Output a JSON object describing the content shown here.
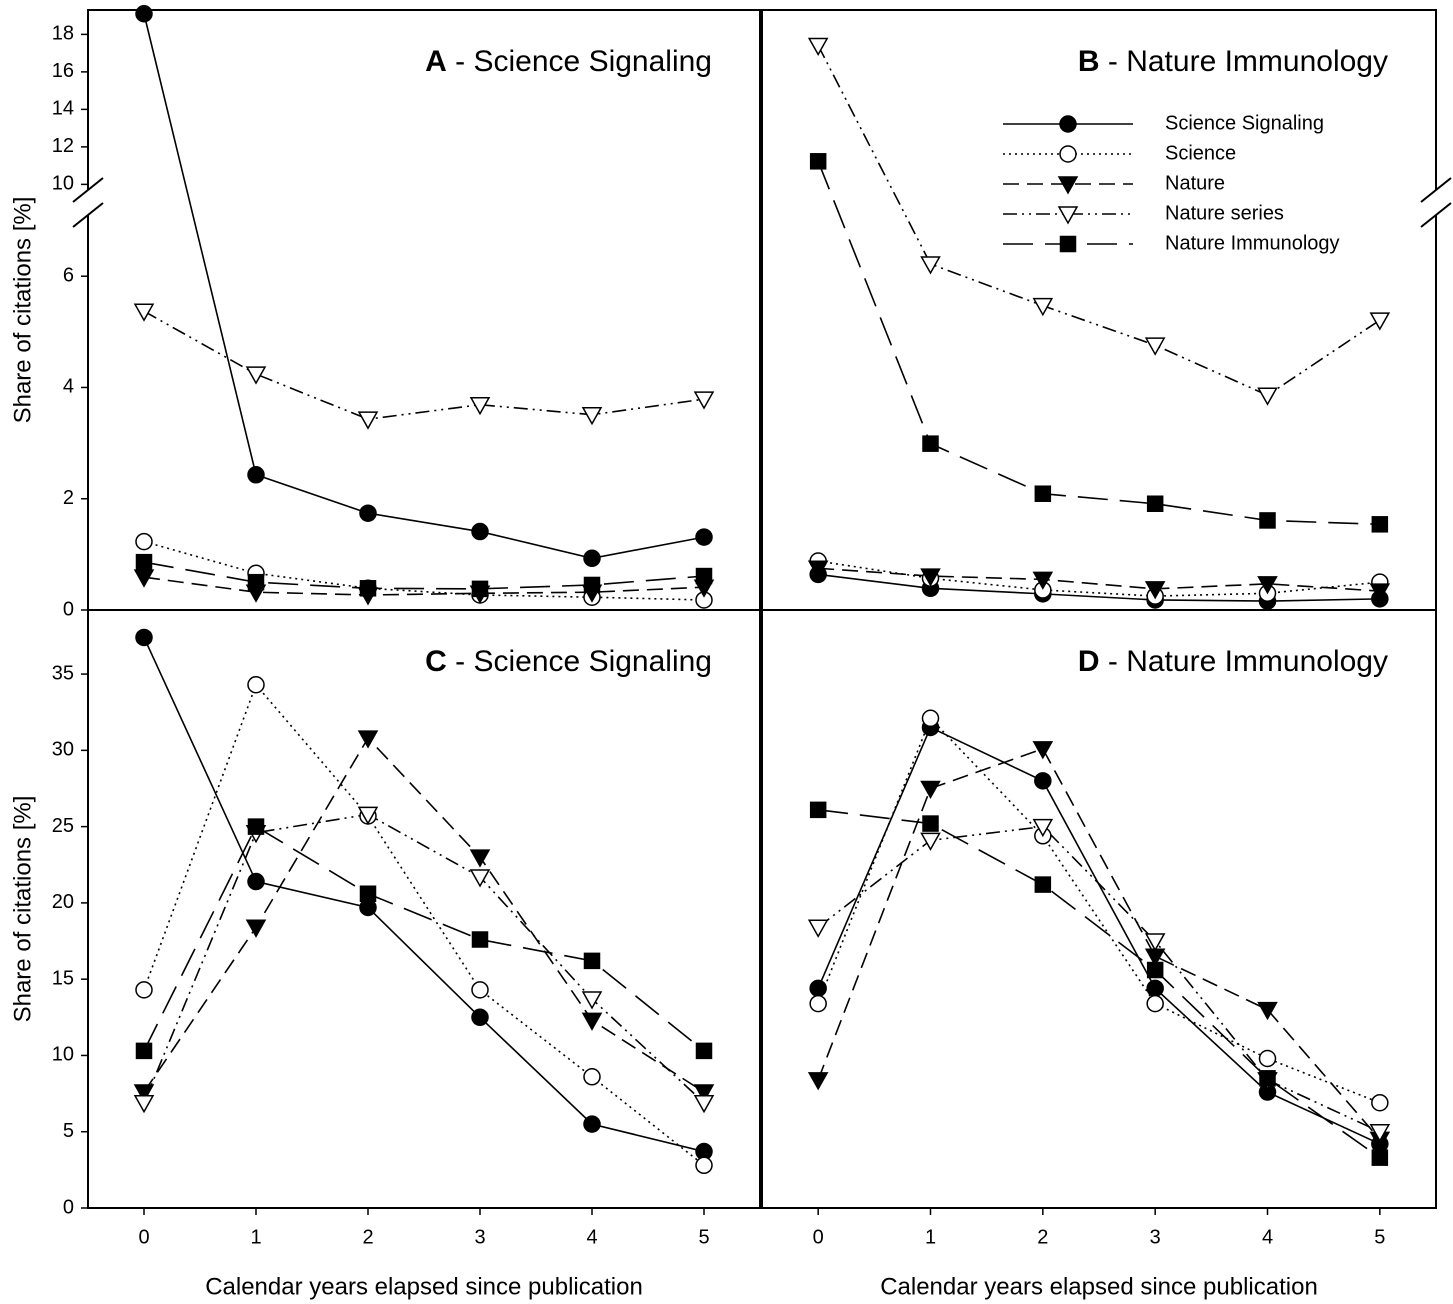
{
  "chart_data": [
    {
      "type": "line",
      "title": "A - Science Signaling",
      "y_label": "Share of citations [%]",
      "x": [
        0,
        1,
        2,
        3,
        4,
        5
      ],
      "xlim": [
        -0.5,
        5.5
      ],
      "ylim": [
        0,
        19.3
      ],
      "ybreak": [
        7.1,
        9.7
      ],
      "yticks": [
        0,
        2,
        4,
        6,
        10,
        12,
        14,
        16,
        18
      ],
      "series": [
        {
          "color": "#000000",
          "marker": "filled-circle",
          "dash": "solid",
          "values": [
            19.1,
            2.43,
            1.74,
            1.41,
            0.93,
            1.31
          ]
        },
        {
          "color": "#000000",
          "marker": "open-circle",
          "dash": "dotted",
          "values": [
            1.23,
            0.66,
            0.39,
            0.27,
            0.23,
            0.18
          ]
        },
        {
          "color": "#000000",
          "marker": "filled-triangle-down",
          "dash": "dashed",
          "values": [
            0.59,
            0.32,
            0.27,
            0.3,
            0.32,
            0.41
          ]
        },
        {
          "color": "#000000",
          "marker": "open-triangle-down",
          "dash": "dash-dot-dot",
          "values": [
            5.37,
            4.24,
            3.43,
            3.69,
            3.51,
            3.79
          ]
        },
        {
          "color": "#000000",
          "marker": "filled-square",
          "dash": "long-dash",
          "values": [
            0.86,
            0.5,
            0.39,
            0.38,
            0.45,
            0.61
          ]
        }
      ]
    },
    {
      "type": "line",
      "title": "B - Nature Immunology",
      "legend": "upper right",
      "x": [
        0,
        1,
        2,
        3,
        4,
        5
      ],
      "xlim": [
        -0.5,
        5.5
      ],
      "ylim": [
        0,
        19.3
      ],
      "ybreak": [
        7.1,
        9.7
      ],
      "series": [
        {
          "name": "Science Signaling",
          "color": "#000000",
          "marker": "filled-circle",
          "dash": "solid",
          "values": [
            0.64,
            0.39,
            0.29,
            0.18,
            0.16,
            0.2
          ]
        },
        {
          "name": "Science",
          "color": "#000000",
          "marker": "open-circle",
          "dash": "dotted",
          "values": [
            0.88,
            0.57,
            0.36,
            0.25,
            0.3,
            0.5
          ]
        },
        {
          "name": "Nature",
          "color": "#000000",
          "marker": "filled-triangle-down",
          "dash": "dashed",
          "values": [
            0.75,
            0.61,
            0.55,
            0.38,
            0.47,
            0.34
          ]
        },
        {
          "name": "Nature series",
          "color": "#000000",
          "marker": "open-triangle-down",
          "dash": "dash-dot-dot",
          "values": [
            17.41,
            6.22,
            5.47,
            4.76,
            3.86,
            5.21
          ]
        },
        {
          "name": "Nature Immunology",
          "color": "#000000",
          "marker": "filled-square",
          "dash": "long-dash",
          "values": [
            11.23,
            2.99,
            2.09,
            1.91,
            1.61,
            1.54
          ]
        }
      ]
    },
    {
      "type": "line",
      "title": "C - Science Signaling",
      "y_label": "Share of citations [%]",
      "x_label": "Calendar years elapsed since publication",
      "x": [
        0,
        1,
        2,
        3,
        4,
        5
      ],
      "xlim": [
        -0.5,
        5.5
      ],
      "xticks": [
        0,
        1,
        2,
        3,
        4,
        5
      ],
      "ylim": [
        0,
        39.2
      ],
      "yticks": [
        0,
        5,
        10,
        15,
        20,
        25,
        30,
        35
      ],
      "series": [
        {
          "color": "#000000",
          "marker": "filled-circle",
          "dash": "solid",
          "values": [
            37.4,
            21.4,
            19.7,
            12.5,
            5.5,
            3.7
          ]
        },
        {
          "color": "#000000",
          "marker": "open-circle",
          "dash": "dotted",
          "values": [
            14.3,
            34.3,
            25.7,
            14.3,
            8.6,
            2.8
          ]
        },
        {
          "color": "#000000",
          "marker": "filled-triangle-down",
          "dash": "dashed",
          "values": [
            7.6,
            18.4,
            30.8,
            23.0,
            12.3,
            7.6
          ]
        },
        {
          "color": "#000000",
          "marker": "open-triangle-down",
          "dash": "dash-dot-dot",
          "values": [
            6.9,
            24.6,
            25.8,
            21.7,
            13.7,
            6.9
          ]
        },
        {
          "color": "#000000",
          "marker": "filled-square",
          "dash": "long-dash",
          "values": [
            10.3,
            25.0,
            20.6,
            17.6,
            16.2,
            10.3
          ]
        }
      ]
    },
    {
      "type": "line",
      "title": "D - Nature Immunology",
      "x_label": "Calendar years elapsed since publication",
      "x": [
        0,
        1,
        2,
        3,
        4,
        5
      ],
      "xlim": [
        -0.5,
        5.5
      ],
      "xticks": [
        0,
        1,
        2,
        3,
        4,
        5
      ],
      "ylim": [
        0,
        39.2
      ],
      "series": [
        {
          "color": "#000000",
          "marker": "filled-circle",
          "dash": "solid",
          "values": [
            14.4,
            31.5,
            28.0,
            14.4,
            7.6,
            4.2
          ]
        },
        {
          "color": "#000000",
          "marker": "open-circle",
          "dash": "dotted",
          "values": [
            13.4,
            32.1,
            24.4,
            13.4,
            9.8,
            6.9
          ]
        },
        {
          "color": "#000000",
          "marker": "filled-triangle-down",
          "dash": "dashed",
          "values": [
            8.4,
            27.5,
            30.1,
            16.5,
            13.0,
            4.5
          ]
        },
        {
          "color": "#000000",
          "marker": "open-triangle-down",
          "dash": "dash-dot-dot",
          "values": [
            18.4,
            24.1,
            25.0,
            17.5,
            8.4,
            5.0
          ]
        },
        {
          "color": "#000000",
          "marker": "filled-square",
          "dash": "long-dash",
          "values": [
            26.1,
            25.2,
            21.2,
            15.6,
            8.5,
            3.3
          ]
        }
      ]
    }
  ]
}
